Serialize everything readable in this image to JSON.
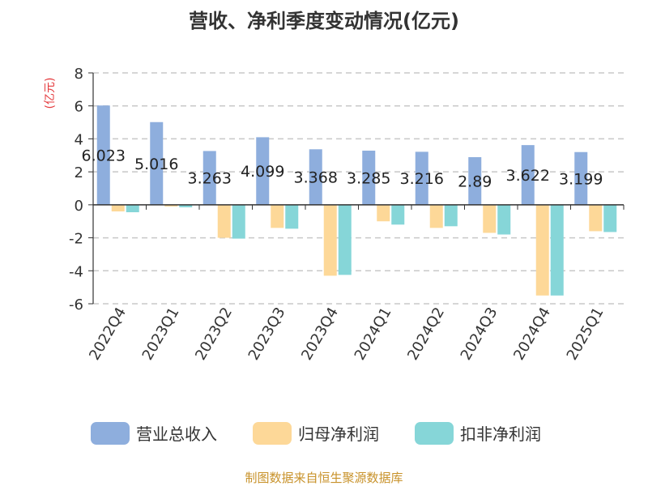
{
  "chart_data": {
    "type": "bar",
    "title": "营收、净利季度变动情况(亿元)",
    "ylabel": "(亿元)",
    "ylim": [
      -6,
      8
    ],
    "yticks": [
      8,
      6,
      4,
      2,
      0,
      -2,
      -4,
      -6
    ],
    "grid": true,
    "legend_position": "bottom",
    "categories": [
      "2022Q4",
      "2023Q1",
      "2023Q2",
      "2023Q3",
      "2023Q4",
      "2024Q1",
      "2024Q2",
      "2024Q3",
      "2024Q4",
      "2025Q1"
    ],
    "series": [
      {
        "name": "营业总收入",
        "color": "#8eaedd",
        "values": [
          6.023,
          5.016,
          3.263,
          4.099,
          3.368,
          3.285,
          3.216,
          2.89,
          3.622,
          3.199
        ],
        "labels": [
          "6.023",
          "5.016",
          "3.263",
          "4.099",
          "3.368",
          "3.285",
          "3.216",
          "2.89",
          "3.622",
          "3.199"
        ]
      },
      {
        "name": "归母净利润",
        "color": "#fdd898",
        "values": [
          -0.4,
          -0.1,
          -2.0,
          -1.4,
          -4.3,
          -1.0,
          -1.4,
          -1.7,
          -5.5,
          -1.6
        ]
      },
      {
        "name": "扣非净利润",
        "color": "#86d6d8",
        "values": [
          -0.45,
          -0.15,
          -2.05,
          -1.45,
          -4.25,
          -1.2,
          -1.3,
          -1.8,
          -5.5,
          -1.65
        ]
      }
    ]
  },
  "footer": {
    "source": "制图数据来自恒生聚源数据库"
  }
}
